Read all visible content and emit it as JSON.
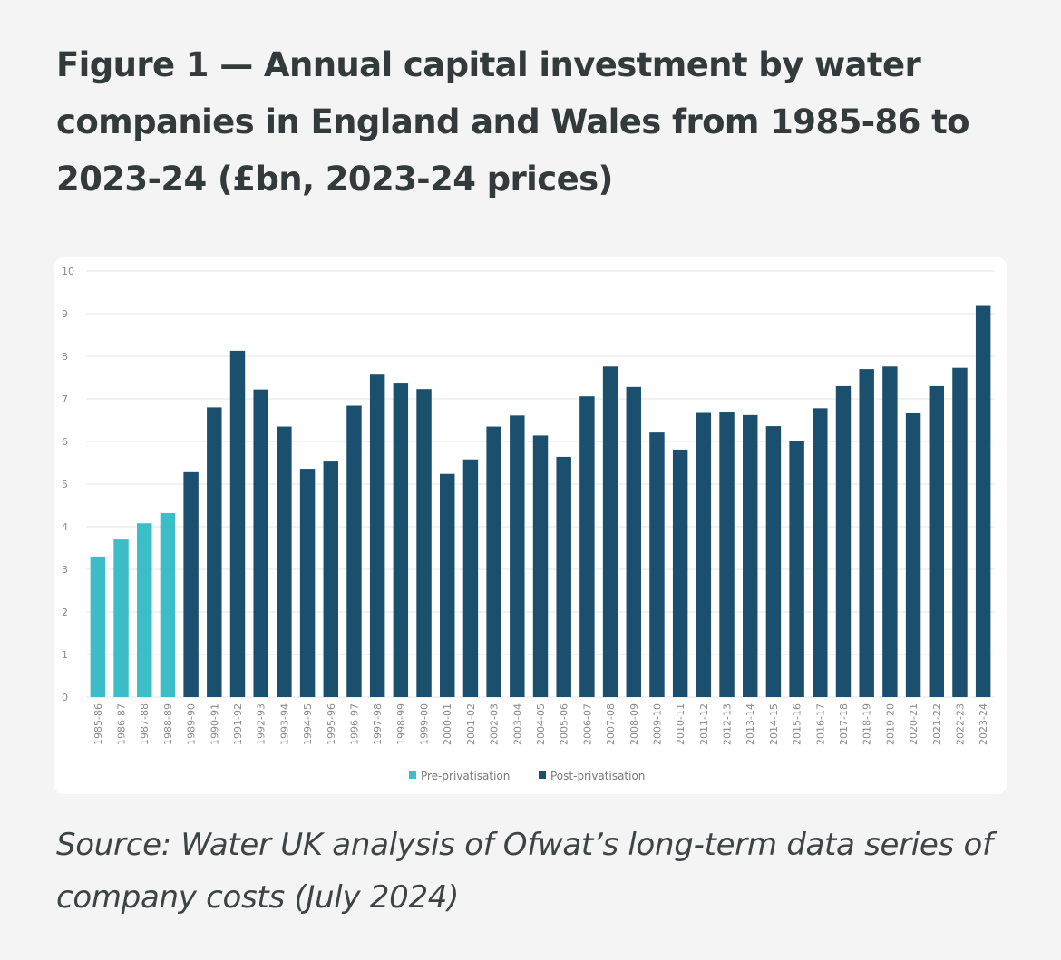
{
  "figure": {
    "title": "Figure 1 — Annual capital investment by water companies in England and Wales from 1985-86 to 2023-24 (£bn, 2023-24 prices)",
    "source": "Source: Water UK analysis of Ofwat’s long-term data series of company costs (July 2024)"
  },
  "colors": {
    "pre": "#3bbec8",
    "post": "#1a4f6e",
    "grid": "#e6e6e6",
    "axis_text": "#8a8a8a",
    "background": "#f4f4f4",
    "card": "#ffffff",
    "title": "#333a3c"
  },
  "chart_data": {
    "type": "bar",
    "title": "Figure 1 — Annual capital investment by water companies in England and Wales from 1985-86 to 2023-24 (£bn, 2023-24 prices)",
    "xlabel": "",
    "ylabel": "",
    "ylim": [
      0,
      10
    ],
    "yticks": [
      0,
      1,
      2,
      3,
      4,
      5,
      6,
      7,
      8,
      9,
      10
    ],
    "grid": true,
    "legend_position": "bottom",
    "categories": [
      "1985-86",
      "1986-87",
      "1987-88",
      "1988-89",
      "1989-90",
      "1990-91",
      "1991-92",
      "1992-93",
      "1993-94",
      "1994-95",
      "1995-96",
      "1996-97",
      "1997-98",
      "1998-99",
      "1999-00",
      "2000-01",
      "2001-02",
      "2002-03",
      "2003-04",
      "2004-05",
      "2005-06",
      "2006-07",
      "2007-08",
      "2008-09",
      "2009-10",
      "2010-11",
      "2011-12",
      "2012-13",
      "2013-14",
      "2014-15",
      "2015-16",
      "2016-17",
      "2017-18",
      "2018-19",
      "2019-20",
      "2020-21",
      "2021-22",
      "2022-23",
      "2023-24"
    ],
    "series": [
      {
        "name": "Pre-privatisation",
        "color": "#3bbec8",
        "values": [
          3.3,
          3.7,
          4.08,
          4.32,
          null,
          null,
          null,
          null,
          null,
          null,
          null,
          null,
          null,
          null,
          null,
          null,
          null,
          null,
          null,
          null,
          null,
          null,
          null,
          null,
          null,
          null,
          null,
          null,
          null,
          null,
          null,
          null,
          null,
          null,
          null,
          null,
          null,
          null,
          null
        ]
      },
      {
        "name": "Post-privatisation",
        "color": "#1a4f6e",
        "values": [
          null,
          null,
          null,
          null,
          5.28,
          6.8,
          8.13,
          7.22,
          6.35,
          5.36,
          5.53,
          6.84,
          7.57,
          7.36,
          7.23,
          5.24,
          5.58,
          6.35,
          6.61,
          6.14,
          5.64,
          7.06,
          7.76,
          7.28,
          6.21,
          5.81,
          6.67,
          6.68,
          6.62,
          6.36,
          6.0,
          6.78,
          7.3,
          7.7,
          7.76,
          6.66,
          7.3,
          7.73,
          9.18
        ]
      }
    ]
  }
}
